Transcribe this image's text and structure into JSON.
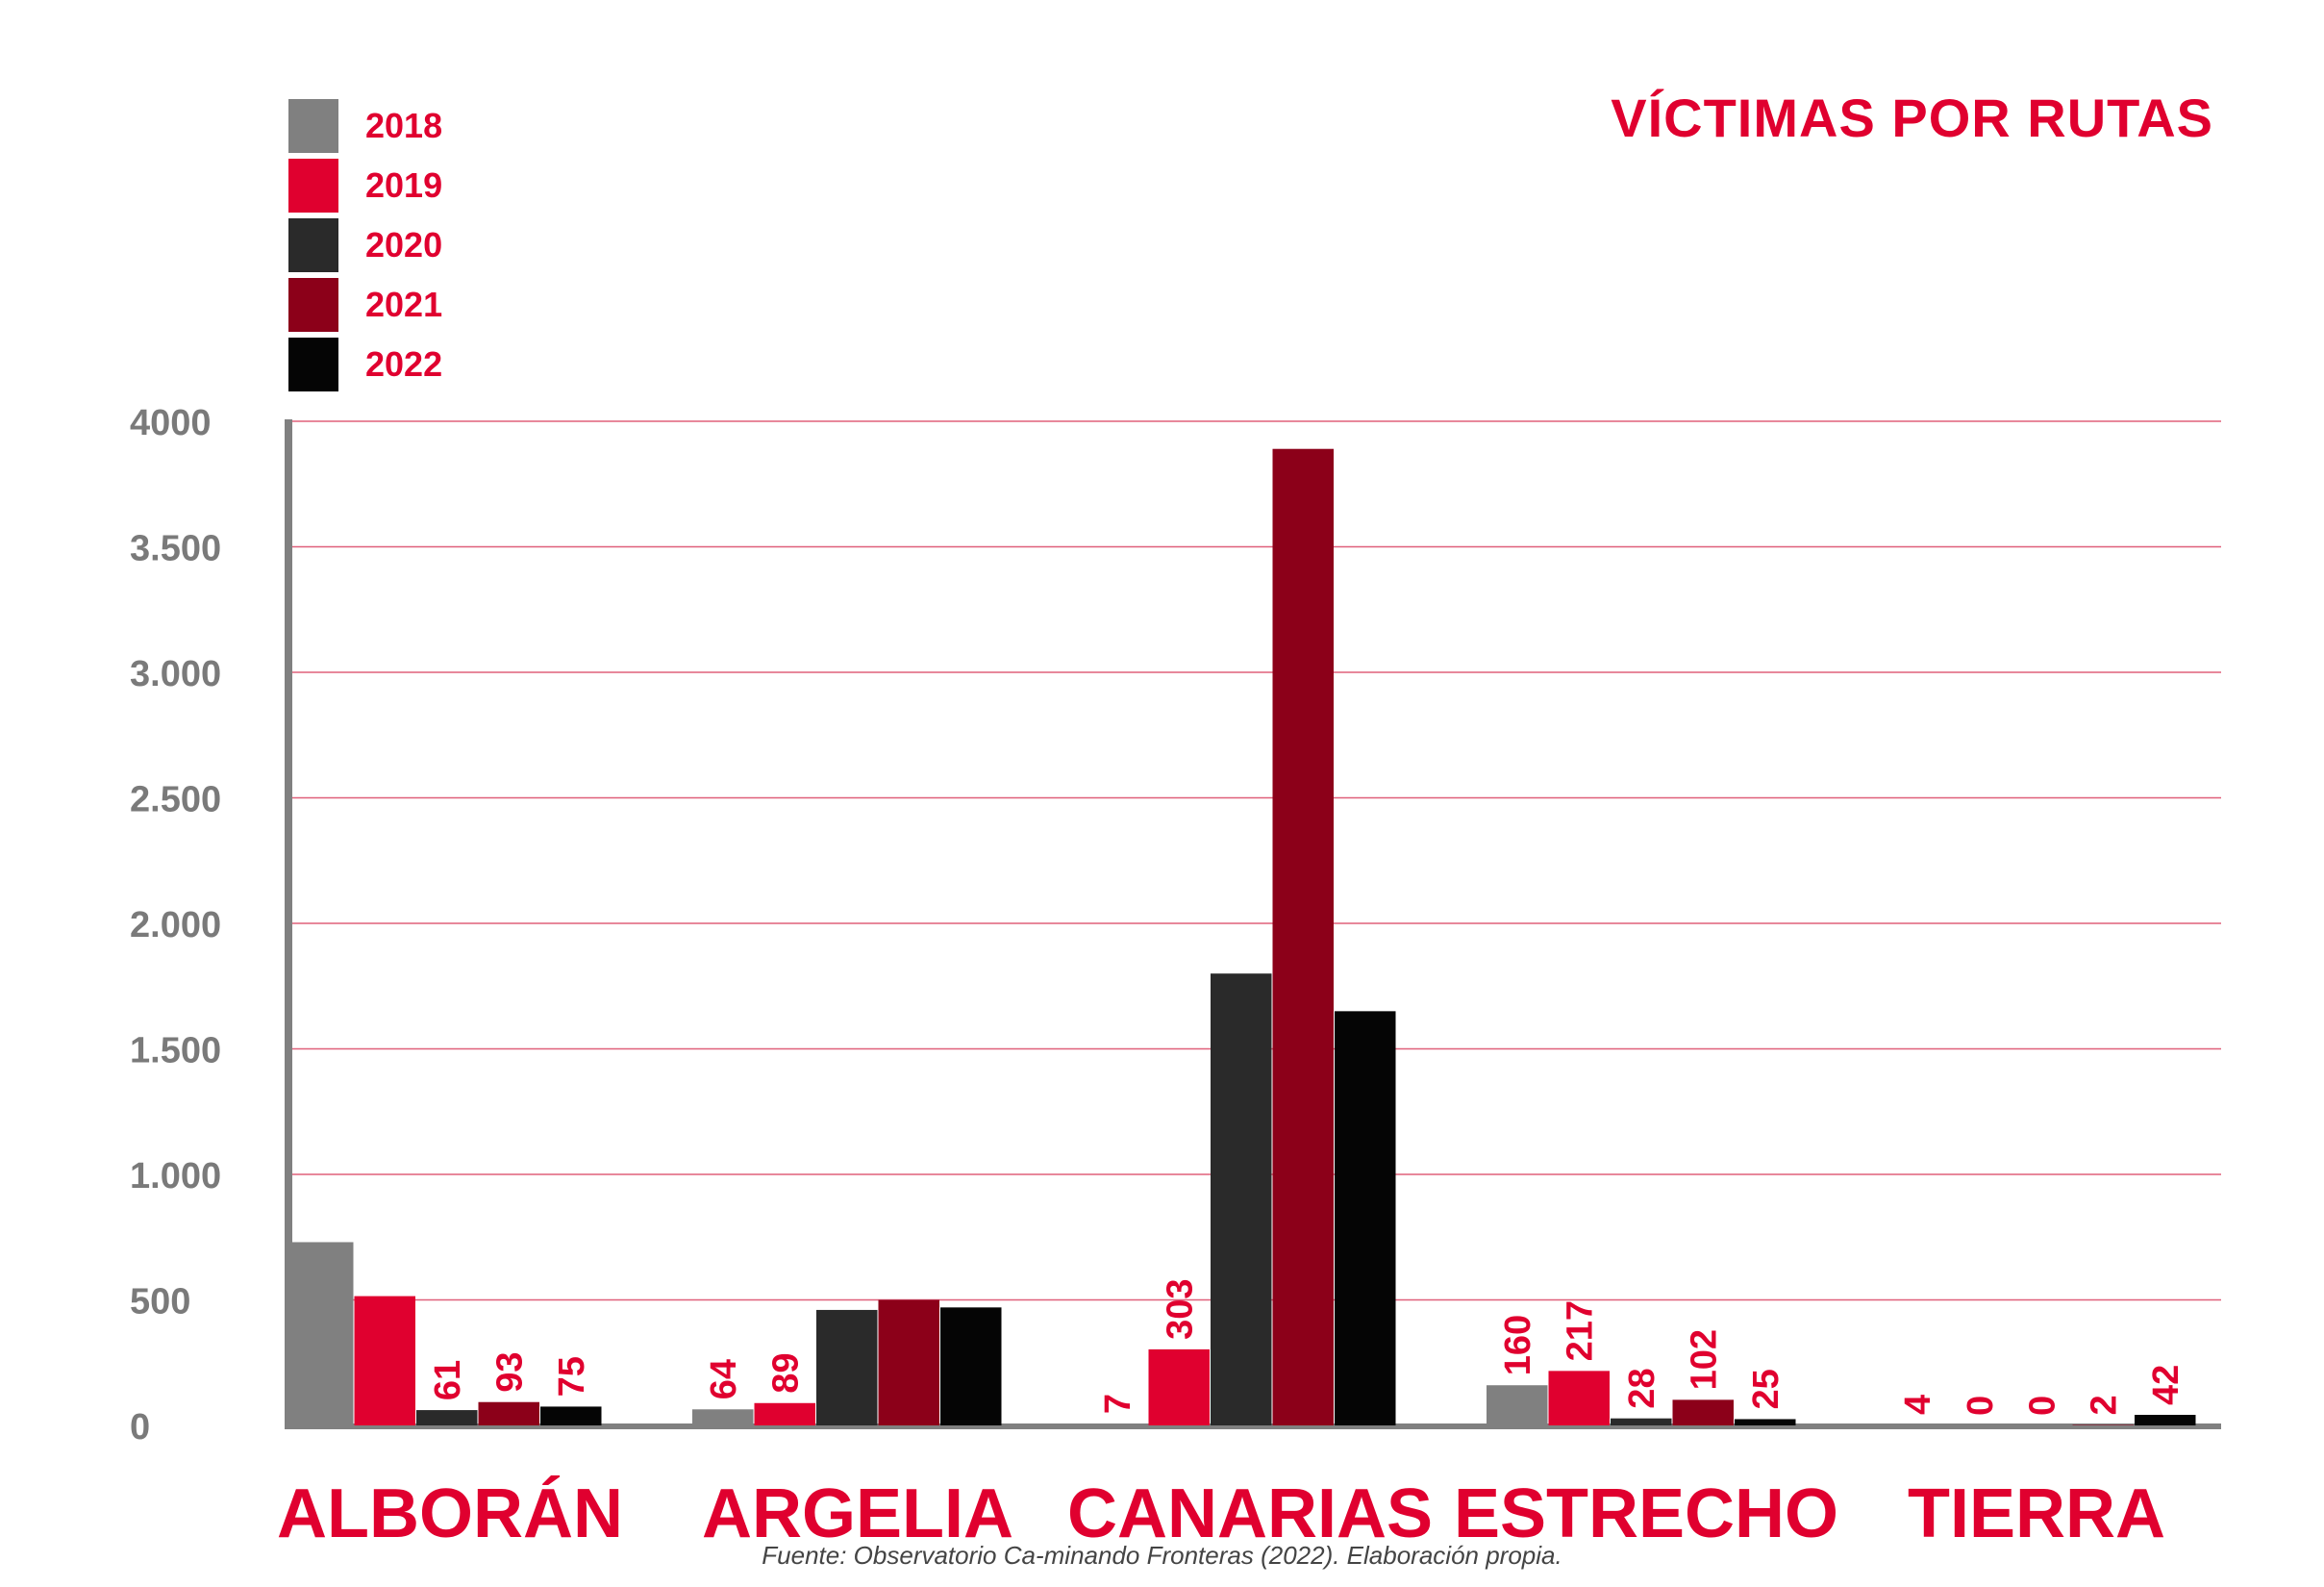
{
  "chart_data": {
    "type": "bar",
    "title": "VÍCTIMAS POR RUTAS",
    "categories": [
      "ALBORÁN",
      "ARGELIA",
      "CANARIAS",
      "ESTRECHO",
      "TIERRA"
    ],
    "series": [
      {
        "name": "2018",
        "color": "#808080",
        "values": [
          730,
          64,
          7,
          160,
          4
        ],
        "labels": [
          "",
          "64",
          "7",
          "160",
          "4"
        ]
      },
      {
        "name": "2019",
        "color": "#e0002f",
        "values": [
          515,
          89,
          303,
          217,
          0
        ],
        "labels": [
          "",
          "89",
          "303",
          "217",
          "0"
        ]
      },
      {
        "name": "2020",
        "color": "#2a2a2a",
        "values": [
          61,
          460,
          1800,
          28,
          0
        ],
        "labels": [
          "61",
          "",
          "",
          "28",
          "0"
        ]
      },
      {
        "name": "2021",
        "color": "#8c0019",
        "values": [
          93,
          500,
          3890,
          102,
          2
        ],
        "labels": [
          "93",
          "",
          "",
          "102",
          "2"
        ]
      },
      {
        "name": "2022",
        "color": "#050505",
        "values": [
          75,
          470,
          1650,
          25,
          42
        ],
        "labels": [
          "75",
          "",
          "",
          "25",
          "42"
        ]
      }
    ],
    "y_ticks": [
      {
        "value": 0,
        "label": "0"
      },
      {
        "value": 500,
        "label": "500"
      },
      {
        "value": 1000,
        "label": "1.000"
      },
      {
        "value": 1500,
        "label": "1.500"
      },
      {
        "value": 2000,
        "label": "2.000"
      },
      {
        "value": 2500,
        "label": "2.500"
      },
      {
        "value": 3000,
        "label": "3.000"
      },
      {
        "value": 3500,
        "label": "3.500"
      },
      {
        "value": 4000,
        "label": "4000"
      }
    ],
    "ylim": [
      0,
      4000
    ],
    "xlabel": "",
    "ylabel": "",
    "grid": true,
    "legend_position": "top-left"
  },
  "source": "Fuente: Observatorio Ca-minando Fronteras (2022). Elaboración propia."
}
